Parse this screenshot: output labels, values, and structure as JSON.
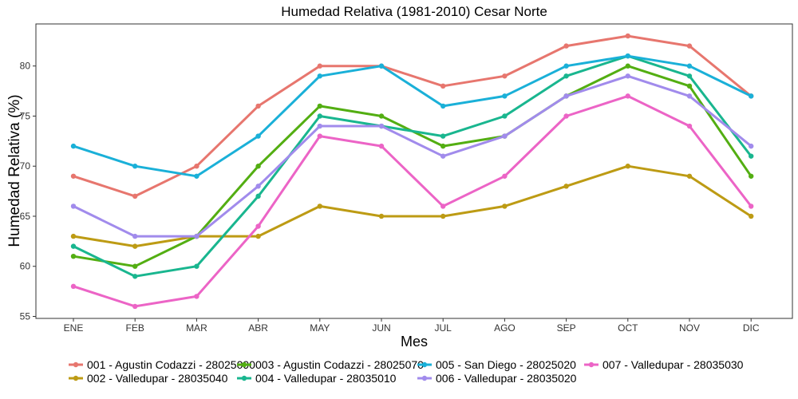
{
  "chart_data": {
    "type": "line",
    "title": "Humedad Relativa (1981-2010)  Cesar Norte",
    "xlabel": "Mes",
    "ylabel": "Humedad Relativa  (%)",
    "categories": [
      "ENE",
      "FEB",
      "MAR",
      "ABR",
      "MAY",
      "JUN",
      "JUL",
      "AGO",
      "SEP",
      "OCT",
      "NOV",
      "DIC"
    ],
    "ylim": [
      54.8,
      84.2
    ],
    "yticks": [
      55,
      60,
      65,
      70,
      75,
      80
    ],
    "grid": false,
    "legend_position": "bottom",
    "series": [
      {
        "name": "001 - Agustin Codazzi - 28025090",
        "color": "#E7766E",
        "values": [
          69,
          67,
          70,
          76,
          80,
          80,
          78,
          79,
          82,
          83,
          82,
          77
        ]
      },
      {
        "name": "002 - Valledupar - 28035040",
        "color": "#BD9B14",
        "values": [
          63,
          62,
          63,
          63,
          66,
          65,
          65,
          66,
          68,
          70,
          69,
          65
        ]
      },
      {
        "name": "003 - Agustin Codazzi - 28025070",
        "color": "#53AE12",
        "values": [
          61,
          60,
          63,
          70,
          76,
          75,
          72,
          73,
          77,
          80,
          78,
          69
        ]
      },
      {
        "name": "004 - Valledupar - 28035010",
        "color": "#19B68F",
        "values": [
          62,
          59,
          60,
          67,
          75,
          74,
          73,
          75,
          79,
          81,
          79,
          71
        ]
      },
      {
        "name": "005 - San Diego - 28025020",
        "color": "#1AB0D8",
        "values": [
          72,
          70,
          69,
          73,
          79,
          80,
          76,
          77,
          80,
          81,
          80,
          77
        ]
      },
      {
        "name": "006 - Valledupar - 28035020",
        "color": "#A18BEC",
        "values": [
          66,
          63,
          63,
          68,
          74,
          74,
          71,
          73,
          77,
          79,
          77,
          72
        ]
      },
      {
        "name": "007 - Valledupar - 28035030",
        "color": "#EC64C6",
        "values": [
          58,
          56,
          57,
          64,
          73,
          72,
          66,
          69,
          75,
          77,
          74,
          66
        ]
      }
    ]
  }
}
